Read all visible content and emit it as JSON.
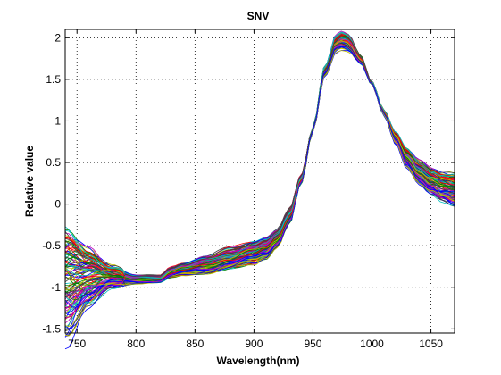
{
  "chart_data": {
    "type": "line",
    "title": "SNV",
    "xlabel": "Wavelength(nm)",
    "ylabel": "Relative value",
    "xlim": [
      740,
      1070
    ],
    "ylim": [
      -1.55,
      2.1
    ],
    "grid": true,
    "grid_style": "dotted",
    "x_ticks": [
      750,
      800,
      850,
      900,
      950,
      1000,
      1050
    ],
    "y_ticks": [
      -1.5,
      -1,
      -0.5,
      0,
      0.5,
      1,
      1.5,
      2
    ],
    "x_tick_labels": [
      "750",
      "800",
      "850",
      "900",
      "950",
      "1000",
      "1050"
    ],
    "y_tick_labels": [
      "-1.5",
      "-1",
      "-0.5",
      "0",
      "0.5",
      "1",
      "1.5",
      "2"
    ],
    "series_count": 120,
    "series_note": "many overlapping multicolored spectra (MATLAB default color cycle)",
    "series_colors": [
      "#0000ff",
      "#008000",
      "#ff0000",
      "#00bfbf",
      "#bf00bf",
      "#bfbf00",
      "#404040"
    ],
    "mean_spectrum": {
      "x": [
        740,
        760,
        780,
        800,
        820,
        830,
        840,
        860,
        880,
        900,
        910,
        920,
        930,
        940,
        950,
        960,
        970,
        975,
        980,
        990,
        1000,
        1010,
        1020,
        1030,
        1040,
        1050,
        1060,
        1070
      ],
      "y": [
        -0.95,
        -0.9,
        -0.88,
        -0.9,
        -0.9,
        -0.82,
        -0.78,
        -0.72,
        -0.65,
        -0.58,
        -0.52,
        -0.4,
        -0.15,
        0.3,
        0.9,
        1.6,
        1.95,
        1.98,
        1.95,
        1.75,
        1.45,
        1.1,
        0.8,
        0.55,
        0.38,
        0.27,
        0.2,
        0.17
      ]
    },
    "spread": {
      "x": [
        740,
        760,
        780,
        800,
        820,
        830,
        840,
        860,
        880,
        900,
        910,
        920,
        930,
        940,
        950,
        960,
        970,
        975,
        980,
        990,
        1000,
        1010,
        1020,
        1030,
        1040,
        1050,
        1060,
        1070
      ],
      "half_range": [
        0.58,
        0.32,
        0.12,
        0.05,
        0.04,
        0.06,
        0.07,
        0.1,
        0.12,
        0.13,
        0.12,
        0.1,
        0.08,
        0.05,
        0.03,
        0.06,
        0.1,
        0.11,
        0.11,
        0.06,
        0.02,
        0.03,
        0.06,
        0.1,
        0.13,
        0.15,
        0.16,
        0.17
      ]
    }
  }
}
